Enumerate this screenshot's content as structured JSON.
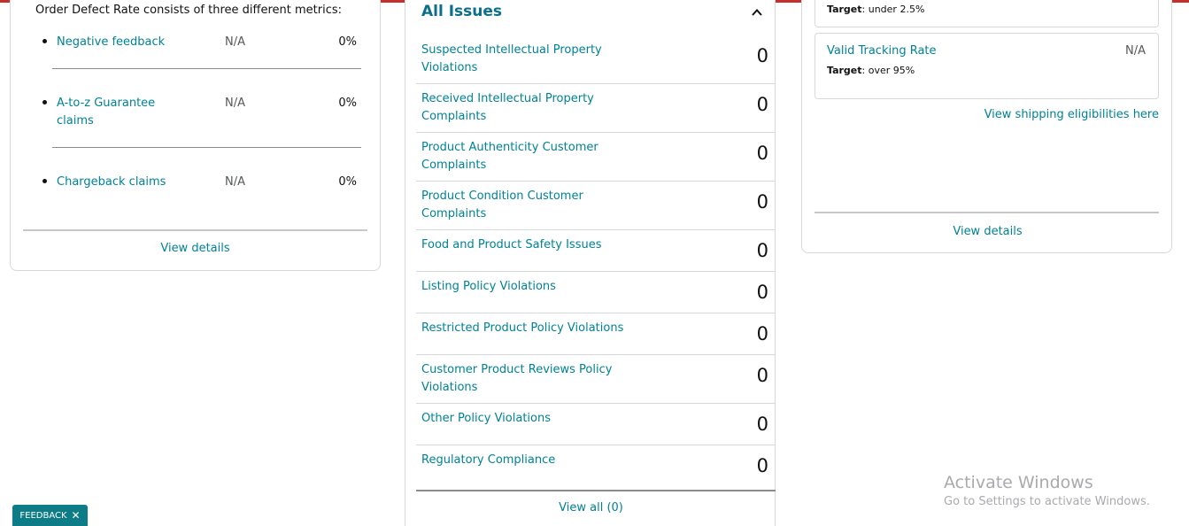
{
  "colors": {
    "link": "#008296",
    "heading": "#0b6e8a",
    "top_bar": "#c4302b",
    "feedback_bg": "#0e7c86"
  },
  "order_defect": {
    "intro": "Order Defect Rate consists of three different metrics:",
    "metrics": [
      {
        "label": "Negative feedback",
        "value": "N/A",
        "percent": "0%"
      },
      {
        "label": "A-to-z Guarantee claims",
        "value": "N/A",
        "percent": "0%"
      },
      {
        "label": "Chargeback claims",
        "value": "N/A",
        "percent": "0%"
      }
    ],
    "view_details": "View details"
  },
  "issues": {
    "title": "All Issues",
    "collapse_icon": "chevron-up-icon",
    "rows": [
      {
        "label": "Suspected Intellectual Property Violations",
        "count": "0"
      },
      {
        "label": "Received Intellectual Property Complaints",
        "count": "0"
      },
      {
        "label": "Product Authenticity Customer Complaints",
        "count": "0"
      },
      {
        "label": "Product Condition Customer Complaints",
        "count": "0"
      },
      {
        "label": "Food and Product Safety Issues",
        "count": "0"
      },
      {
        "label": "Listing Policy Violations",
        "count": "0"
      },
      {
        "label": "Restricted Product Policy Violations",
        "count": "0"
      },
      {
        "label": "Customer Product Reviews Policy Violations",
        "count": "0"
      },
      {
        "label": "Other Policy Violations",
        "count": "0"
      },
      {
        "label": "Regulatory Compliance",
        "count": "0"
      }
    ],
    "view_all": "View all (0)"
  },
  "shipping": {
    "prev_target_label": "Target",
    "prev_target_value": ": under 2.5%",
    "valid_tracking": {
      "name": "Valid Tracking Rate",
      "value": "N/A",
      "target_label": "Target",
      "target_value": ": over 95%"
    },
    "eligibility_link": "View shipping eligibilities here",
    "view_details": "View details"
  },
  "watermark": {
    "title": "Activate Windows",
    "subtitle": "Go to Settings to activate Windows."
  },
  "feedback": {
    "label": "FEEDBACK",
    "close": "✕"
  }
}
